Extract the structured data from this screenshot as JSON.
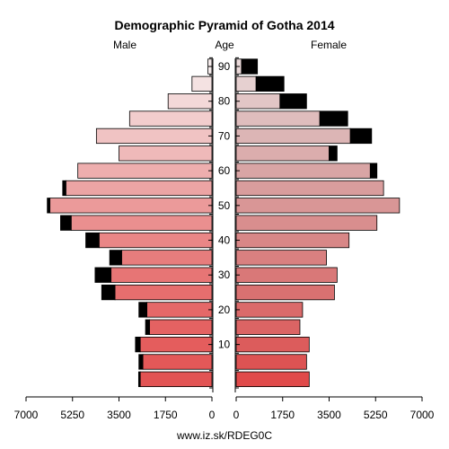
{
  "chart_data": {
    "type": "bar",
    "title": "Demographic Pyramid of Gotha 2014",
    "left_label": "Male",
    "center_label": "Age",
    "right_label": "Female",
    "footer": "www.iz.sk/RDEG0C",
    "x_max": 7000,
    "x_ticks": [
      0,
      1750,
      3500,
      5250,
      7000
    ],
    "x_tick_labels": [
      "0",
      "1750",
      "3500",
      "5250",
      "7000"
    ],
    "age_ticks": [
      10,
      20,
      30,
      40,
      50,
      60,
      70,
      80,
      90
    ],
    "groups": [
      "0-4",
      "5-9",
      "10-14",
      "15-19",
      "20-24",
      "25-29",
      "30-34",
      "35-39",
      "40-44",
      "45-49",
      "50-54",
      "55-59",
      "60-64",
      "65-69",
      "70-74",
      "75-79",
      "80-84",
      "85-89",
      "90+"
    ],
    "series": [
      {
        "name": "Male",
        "base": [
          2700,
          2600,
          2700,
          2350,
          2450,
          3650,
          3800,
          3400,
          4250,
          5300,
          6100,
          5500,
          5050,
          3500,
          4350,
          3100,
          1650,
          750,
          150
        ],
        "extra": [
          60,
          150,
          180,
          150,
          300,
          500,
          600,
          450,
          500,
          400,
          100,
          120,
          0,
          0,
          0,
          0,
          0,
          0,
          0
        ]
      },
      {
        "name": "Female",
        "base": [
          2750,
          2650,
          2750,
          2400,
          2500,
          3700,
          3800,
          3400,
          4250,
          5300,
          6150,
          5550,
          5050,
          3500,
          4300,
          3150,
          1650,
          750,
          200
        ],
        "extra": [
          0,
          0,
          0,
          0,
          0,
          0,
          0,
          0,
          0,
          0,
          0,
          0,
          250,
          300,
          800,
          1050,
          1000,
          1050,
          600
        ]
      }
    ],
    "colors": {
      "male": [
        "#e25353",
        "#e35858",
        "#e45d5d",
        "#e46262",
        "#e56868",
        "#e66e6e",
        "#e77575",
        "#e77d7d",
        "#e98686",
        "#ea8f8f",
        "#eb9a9a",
        "#eca4a4",
        "#eeaeae",
        "#efb9b9",
        "#f0c3c3",
        "#f2cdcd",
        "#f3d8d8",
        "#f4e2e2",
        "#f6ecec"
      ],
      "female": [
        "#e04a4a",
        "#dd5353",
        "#dc5c5c",
        "#db6464",
        "#da6a6a",
        "#d97171",
        "#d97878",
        "#d98080",
        "#d88787",
        "#d98e8e",
        "#d99696",
        "#d99d9d",
        "#d9a5a5",
        "#dbadad",
        "#dcb5b5",
        "#dfbdbd",
        "#e2c6c6",
        "#e6d0d0",
        "#ead9d9"
      ],
      "extra": "#000000",
      "outline": "#000000"
    }
  }
}
